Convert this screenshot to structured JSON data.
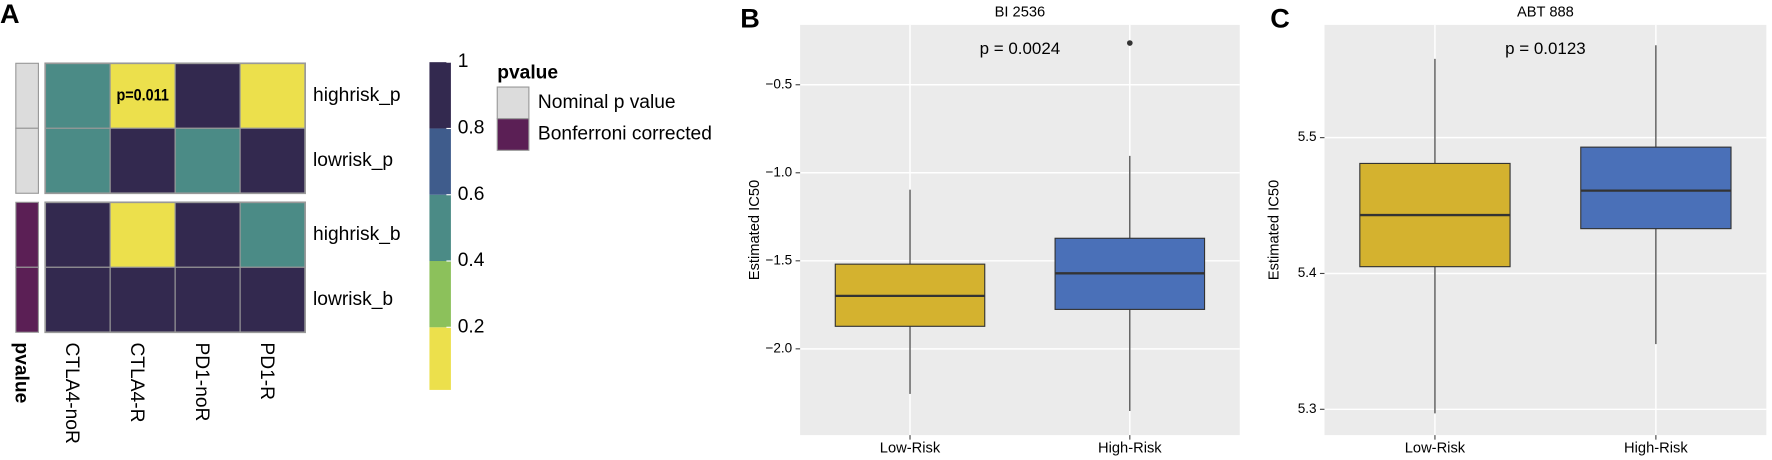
{
  "chart_data": [
    {
      "type": "heatmap",
      "panel": "A",
      "rows": [
        "highrisk_p",
        "lowrisk_p",
        "highrisk_b",
        "lowrisk_b"
      ],
      "columns": [
        "CTLA4-noR",
        "CTLA4-R",
        "PD1-noR",
        "PD1-R"
      ],
      "values": [
        [
          0.5,
          0.011,
          1,
          0.1
        ],
        [
          0.5,
          1,
          0.5,
          1
        ],
        [
          1,
          0.044,
          1,
          0.5
        ],
        [
          1,
          1,
          1,
          1
        ]
      ],
      "value_labels": [
        [
          null,
          "p=0.011",
          null,
          null
        ],
        [
          null,
          null,
          null,
          null
        ],
        [
          null,
          null,
          null,
          null
        ],
        [
          null,
          null,
          null,
          null
        ]
      ],
      "annotation": {
        "title": "pvalue",
        "row_group": [
          0,
          0,
          1,
          1
        ],
        "legend": [
          {
            "name": "Nominal p value",
            "color": "#dcdcdc"
          },
          {
            "name": "Bonferroni corrected",
            "color": "#5b1f55"
          }
        ]
      },
      "colorbar": {
        "lim": [
          0.011,
          1
        ],
        "ticks": [
          0.2,
          0.4,
          0.6,
          0.8,
          1
        ],
        "breaks": [
          0.2,
          0.4,
          0.6,
          0.8
        ],
        "colors": [
          "#ece04c",
          "#8cc15b",
          "#4b8b86",
          "#3f5c8c",
          "#33294f"
        ]
      }
    },
    {
      "type": "box",
      "panel": "B",
      "title": "BI 2536",
      "ylabel": "Estimated IC50",
      "annotation": "p = 0.0024",
      "categories": [
        "Low-Risk",
        "High-Risk"
      ],
      "colors": [
        "#d4b22f",
        "#4a70b8"
      ],
      "boxes": [
        {
          "min": -2.256,
          "q1": -1.872,
          "median": -1.699,
          "q3": -1.519,
          "max": -1.096,
          "outliers": []
        },
        {
          "min": -2.353,
          "q1": -1.776,
          "median": -1.571,
          "q3": -1.372,
          "max": -0.904,
          "outliers": [
            -0.263
          ]
        }
      ],
      "ylim": [
        -2.49,
        -0.16
      ],
      "yticks": [
        {
          "value": -2.0,
          "label": "−2.0"
        },
        {
          "value": -1.5,
          "label": "−1.5"
        },
        {
          "value": -1.0,
          "label": "−1.0"
        },
        {
          "value": -0.5,
          "label": "−0.5"
        }
      ],
      "grid": true
    },
    {
      "type": "box",
      "panel": "C",
      "title": "ABT 888",
      "ylabel": "Estimated IC50",
      "annotation": "p = 0.0123",
      "categories": [
        "Low-Risk",
        "High-Risk"
      ],
      "colors": [
        "#d4b22f",
        "#4a70b8"
      ],
      "boxes": [
        {
          "min": 5.297,
          "q1": 5.405,
          "median": 5.443,
          "q3": 5.481,
          "max": 5.558,
          "outliers": []
        },
        {
          "min": 5.348,
          "q1": 5.433,
          "median": 5.461,
          "q3": 5.493,
          "max": 5.568,
          "outliers": []
        }
      ],
      "ylim": [
        5.281,
        5.583
      ],
      "yticks": [
        5.3,
        5.4,
        5.5
      ],
      "grid": true
    }
  ]
}
